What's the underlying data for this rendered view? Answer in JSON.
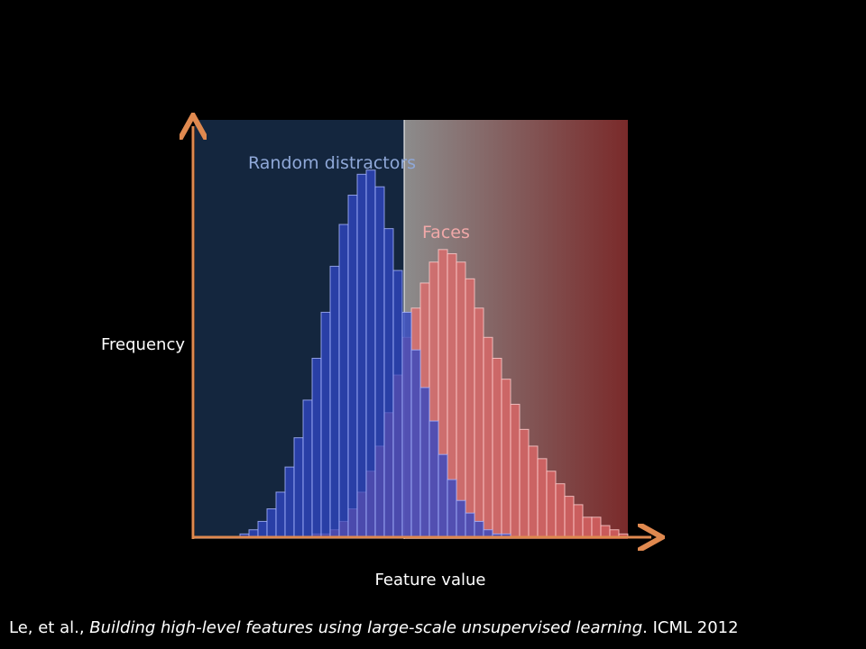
{
  "chart_data": {
    "type": "bar",
    "title": "",
    "xlabel": "Feature value",
    "ylabel": "Frequency",
    "x_bins": 48,
    "ylim": [
      0,
      100
    ],
    "series": [
      {
        "name": "Random distractors",
        "color": "#3a4fc0",
        "values": [
          0,
          0,
          0,
          0,
          0,
          1,
          2,
          4,
          7,
          11,
          17,
          24,
          33,
          43,
          54,
          65,
          75,
          82,
          87,
          88,
          84,
          74,
          64,
          54,
          45,
          36,
          28,
          20,
          14,
          9,
          6,
          4,
          2,
          1,
          1,
          0,
          0,
          0,
          0,
          0,
          0,
          0,
          0,
          0,
          0,
          0,
          0,
          0
        ]
      },
      {
        "name": "Faces",
        "color": "#e86a6a",
        "values": [
          0,
          0,
          0,
          0,
          0,
          0,
          0,
          0,
          0,
          0,
          0,
          0,
          0,
          1,
          1,
          2,
          4,
          7,
          11,
          16,
          22,
          30,
          39,
          48,
          55,
          61,
          66,
          69,
          68,
          66,
          62,
          55,
          48,
          43,
          38,
          32,
          26,
          22,
          19,
          16,
          13,
          10,
          8,
          5,
          5,
          3,
          2,
          1
        ]
      }
    ],
    "legend": "inline-labels",
    "grid": false,
    "background": {
      "left_color": "#14263e",
      "right_gradient": [
        "#8c8c8c",
        "#7a2a2a"
      ]
    },
    "axis_color": "#e0894f"
  },
  "citation": {
    "authors": "Le, et al., ",
    "title": "Building high-level features using large-scale unsupervised learning",
    "venue": ". ICML 2012"
  }
}
